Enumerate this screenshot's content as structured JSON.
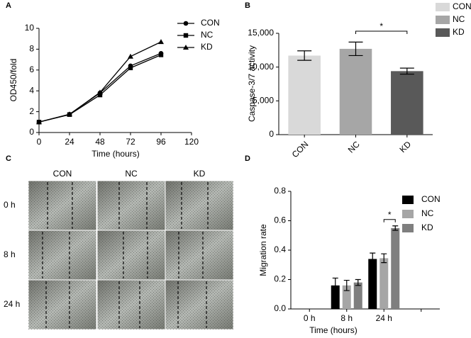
{
  "chart_data": [
    {
      "type": "line",
      "panel": "A",
      "xlabel": "Time (hours)",
      "ylabel": "OD450/fold",
      "x": [
        0,
        24,
        48,
        72,
        96
      ],
      "xlim": [
        0,
        120
      ],
      "xticks": [
        0,
        24,
        48,
        72,
        96,
        120
      ],
      "ylim": [
        0,
        10
      ],
      "yticks": [
        0,
        2,
        4,
        6,
        8,
        10
      ],
      "legend": "upper right",
      "series": [
        {
          "name": "CON",
          "color": "#000000",
          "marker": "circle",
          "values": [
            1,
            1.75,
            3.8,
            6.4,
            7.6
          ]
        },
        {
          "name": "NC",
          "color": "#000000",
          "marker": "square",
          "values": [
            1,
            1.72,
            3.6,
            6.2,
            7.45
          ]
        },
        {
          "name": "KD",
          "color": "#000000",
          "marker": "triangle",
          "values": [
            1,
            1.75,
            3.85,
            7.3,
            8.7
          ]
        }
      ]
    },
    {
      "type": "bar",
      "panel": "B",
      "ylabel": "Caspase-3/7 activity",
      "categories": [
        "CON",
        "NC",
        "KD"
      ],
      "values": [
        11700,
        12700,
        9400
      ],
      "errors": [
        700,
        1000,
        450
      ],
      "colors": [
        "#d9d9d9",
        "#a6a6a6",
        "#595959"
      ],
      "legend": "outside right",
      "ylim": [
        0,
        15000
      ],
      "yticks": [
        0,
        {
          "value": 5000,
          "label": "5,000"
        },
        {
          "value": 10000,
          "label": "10,000"
        },
        {
          "value": 15000,
          "label": "15,000"
        }
      ],
      "significance": "*"
    },
    {
      "type": "bar",
      "panel": "D",
      "xlabel": "Time (hours)",
      "ylabel": "Migration rate",
      "categories": [
        "0 h",
        "8 h",
        "24 h",
        null
      ],
      "legend": "upper right",
      "ylim": [
        0,
        0.8
      ],
      "yticks": [
        {
          "value": 0,
          "label": "0.0"
        },
        0.2,
        0.4,
        0.6,
        0.8
      ],
      "series": [
        {
          "name": "CON",
          "color": "#000000",
          "values": [
            null,
            0.16,
            0.34,
            null
          ],
          "errors": [
            null,
            0.05,
            0.04,
            null
          ]
        },
        {
          "name": "NC",
          "color": "#a6a6a6",
          "values": [
            null,
            0.16,
            0.345,
            null
          ],
          "errors": [
            null,
            0.035,
            0.03,
            null
          ]
        },
        {
          "name": "KD",
          "color": "#7f7f7f",
          "values": [
            null,
            0.18,
            0.55,
            null
          ],
          "errors": [
            null,
            0.02,
            0.015,
            null
          ]
        }
      ],
      "significance": "*"
    }
  ],
  "panel_c": {
    "panel": "C",
    "columns": [
      "CON",
      "NC",
      "KD"
    ],
    "rows": [
      "0 h",
      "8 h",
      "24 h"
    ]
  }
}
